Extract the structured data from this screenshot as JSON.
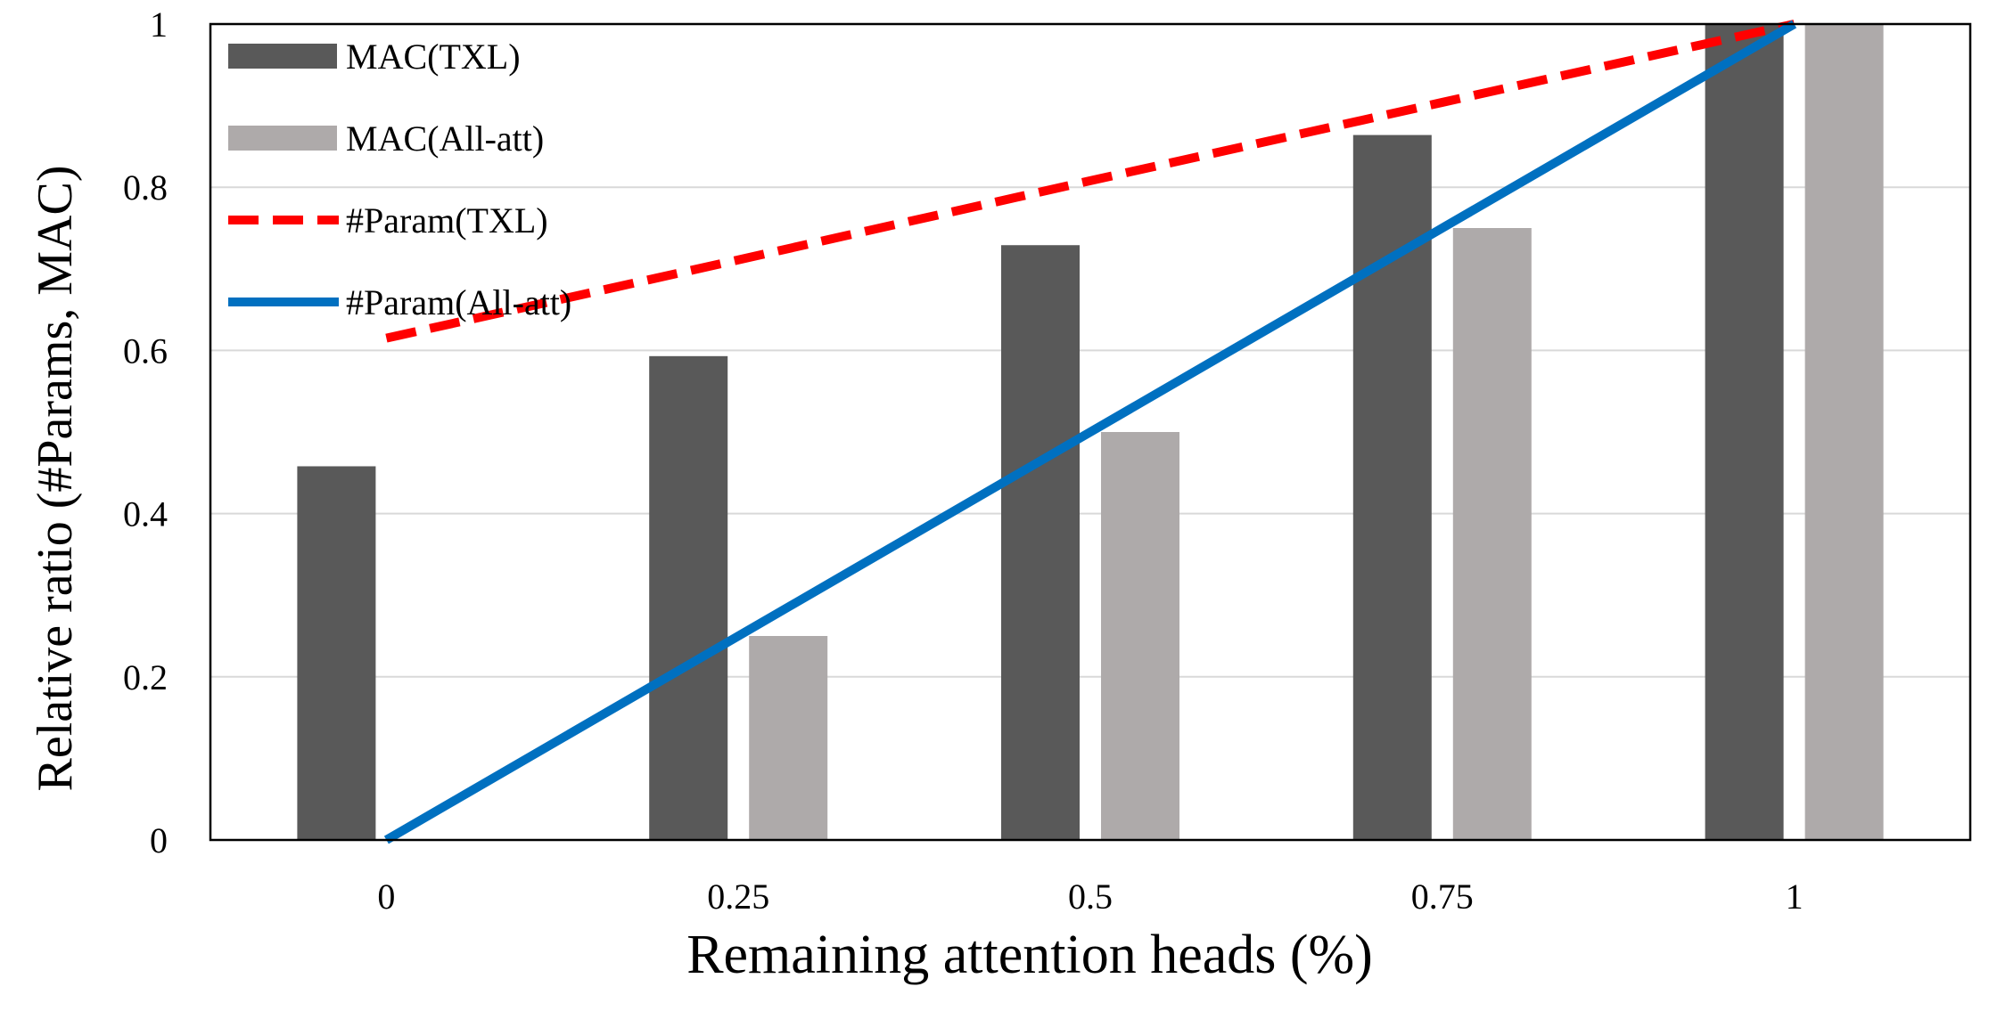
{
  "chart_data": {
    "type": "bar",
    "title": "",
    "xlabel": "Remaining attention heads (%)",
    "ylabel": "Relative ratio (#Params, MAC)",
    "categories": [
      "0",
      "0.25",
      "0.5",
      "0.75",
      "1"
    ],
    "ylim": [
      0,
      1
    ],
    "yticks": [
      "0",
      "0.2",
      "0.4",
      "0.6",
      "0.8",
      "1"
    ],
    "grid": true,
    "legend_position": "top-left",
    "series": [
      {
        "name": "MAC(TXL)",
        "kind": "bar",
        "color": "#595959",
        "values": [
          0.458,
          0.593,
          0.729,
          0.864,
          1.0
        ]
      },
      {
        "name": "MAC(All-att)",
        "kind": "bar",
        "color": "#aeaaaa",
        "values": [
          0.0,
          0.25,
          0.5,
          0.75,
          1.0
        ]
      },
      {
        "name": "#Param(TXL)",
        "kind": "line",
        "style": "dashed",
        "color": "#ff0000",
        "values": [
          0.615,
          0.711,
          0.808,
          0.904,
          1.0
        ]
      },
      {
        "name": "#Param(All-att)",
        "kind": "line",
        "style": "solid",
        "color": "#0070c0",
        "values": [
          0.0,
          0.25,
          0.5,
          0.75,
          1.0
        ]
      }
    ]
  }
}
